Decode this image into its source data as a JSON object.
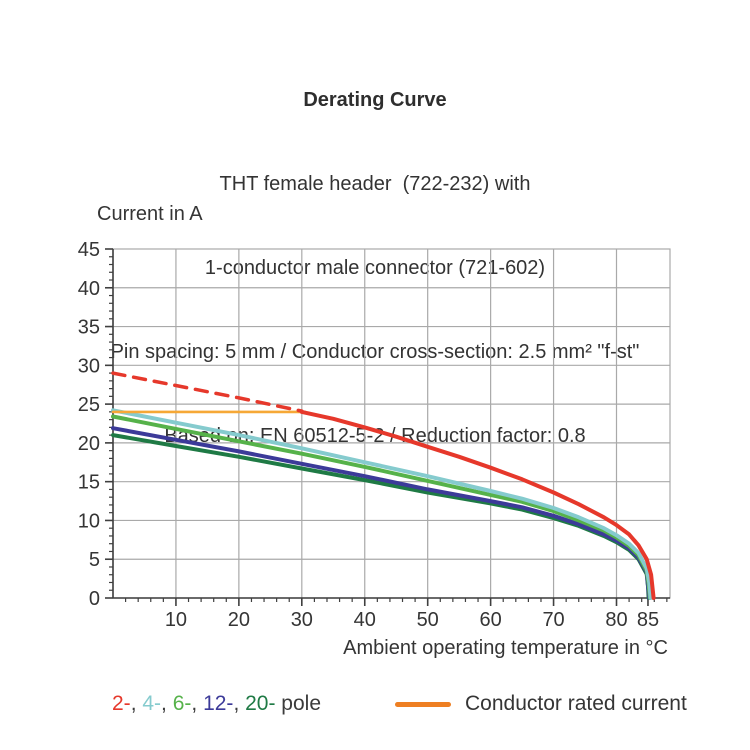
{
  "title_block": {
    "line1": "Derating Curve",
    "line2": "THT female header  (722-232) with",
    "line3": "1-conductor male connector (721-602)",
    "line4": "Pin spacing: 5 mm / Conductor cross-section: 2.5 mm² \"f-st\"",
    "line5": "Based on: EN 60512-5-2 / Reduction factor: 0.8"
  },
  "chart_data": {
    "type": "line",
    "title": "Derating Curve",
    "ylabel": "Current in A",
    "xlabel": "Ambient operating temperature in °C",
    "xlim": [
      0,
      88.5
    ],
    "ylim": [
      0,
      45
    ],
    "x_major_ticks": [
      10,
      20,
      30,
      40,
      50,
      60,
      70,
      80,
      85
    ],
    "x_grid_ticks": [
      10,
      20,
      30,
      40,
      50,
      60,
      70,
      80
    ],
    "x_minor_step": 2,
    "y_major_ticks": [
      0,
      5,
      10,
      15,
      20,
      25,
      30,
      35,
      40,
      45
    ],
    "y_grid_ticks": [
      5,
      10,
      15,
      20,
      25,
      30,
      35,
      40
    ],
    "y_minor_step": 1,
    "grid": true,
    "grid_color": "#a9a9a9",
    "axis_color": "#3f3f3f",
    "series": [
      {
        "name": "20-pole",
        "color": "#1f7a45",
        "style": "solid",
        "width": 4,
        "points": [
          [
            0,
            21.0
          ],
          [
            10,
            19.6
          ],
          [
            20,
            18.2
          ],
          [
            30,
            16.7
          ],
          [
            40,
            15.2
          ],
          [
            50,
            13.6
          ],
          [
            60,
            12.2
          ],
          [
            65,
            11.4
          ],
          [
            70,
            10.3
          ],
          [
            74,
            9.3
          ],
          [
            78,
            8.0
          ],
          [
            80,
            7.2
          ],
          [
            82,
            6.2
          ],
          [
            83.5,
            5.0
          ],
          [
            84.8,
            3.1
          ],
          [
            85,
            1.5
          ],
          [
            85.1,
            0
          ]
        ]
      },
      {
        "name": "12-pole",
        "color": "#3c3a99",
        "style": "solid",
        "width": 4,
        "points": [
          [
            0,
            21.9
          ],
          [
            10,
            20.4
          ],
          [
            20,
            18.9
          ],
          [
            30,
            17.3
          ],
          [
            40,
            15.7
          ],
          [
            50,
            14.0
          ],
          [
            60,
            12.5
          ],
          [
            65,
            11.7
          ],
          [
            70,
            10.6
          ],
          [
            74,
            9.5
          ],
          [
            78,
            8.2
          ],
          [
            80,
            7.4
          ],
          [
            82,
            6.4
          ],
          [
            83.5,
            5.2
          ],
          [
            84.8,
            3.3
          ],
          [
            85,
            1.6
          ],
          [
            85.2,
            0
          ]
        ]
      },
      {
        "name": "6-pole",
        "color": "#56b24a",
        "style": "solid",
        "width": 4,
        "points": [
          [
            0,
            23.4
          ],
          [
            10,
            21.8
          ],
          [
            20,
            20.2
          ],
          [
            30,
            18.6
          ],
          [
            40,
            16.9
          ],
          [
            50,
            15.1
          ],
          [
            60,
            13.3
          ],
          [
            65,
            12.4
          ],
          [
            70,
            11.2
          ],
          [
            74,
            10.0
          ],
          [
            78,
            8.7
          ],
          [
            80,
            7.8
          ],
          [
            82,
            6.7
          ],
          [
            83.5,
            5.5
          ],
          [
            84.8,
            3.5
          ],
          [
            85.1,
            1.8
          ],
          [
            85.3,
            0
          ]
        ]
      },
      {
        "name": "4-pole",
        "color": "#85cbce",
        "style": "solid",
        "width": 4,
        "points": [
          [
            0,
            24.2
          ],
          [
            10,
            22.6
          ],
          [
            20,
            21.0
          ],
          [
            30,
            19.3
          ],
          [
            40,
            17.5
          ],
          [
            50,
            15.7
          ],
          [
            60,
            13.8
          ],
          [
            65,
            12.8
          ],
          [
            70,
            11.6
          ],
          [
            74,
            10.4
          ],
          [
            78,
            9.0
          ],
          [
            80,
            8.1
          ],
          [
            82,
            7.0
          ],
          [
            83.5,
            5.8
          ],
          [
            84.8,
            3.8
          ],
          [
            85.2,
            2.0
          ],
          [
            85.4,
            0
          ]
        ]
      },
      {
        "name": "Conductor rated current",
        "color": "#f6a836",
        "style": "solid",
        "width": 2.6,
        "points": [
          [
            0,
            24
          ],
          [
            30.5,
            24
          ]
        ]
      },
      {
        "name": "2-pole (above rated current)",
        "color": "#e6382b",
        "style": "dashed",
        "width": 3.5,
        "points": [
          [
            0,
            29
          ],
          [
            10,
            27.4
          ],
          [
            20,
            25.8
          ],
          [
            30,
            24.1
          ]
        ]
      },
      {
        "name": "2-pole",
        "color": "#e6382b",
        "style": "solid",
        "width": 4,
        "points": [
          [
            30,
            24
          ],
          [
            35,
            23.1
          ],
          [
            40,
            22.0
          ],
          [
            45,
            20.8
          ],
          [
            50,
            19.5
          ],
          [
            55,
            18.2
          ],
          [
            60,
            16.8
          ],
          [
            65,
            15.3
          ],
          [
            70,
            13.6
          ],
          [
            74,
            12.1
          ],
          [
            78,
            10.4
          ],
          [
            80,
            9.4
          ],
          [
            82,
            8.2
          ],
          [
            83.5,
            6.8
          ],
          [
            84.8,
            5.0
          ],
          [
            85.5,
            3.0
          ],
          [
            85.9,
            0
          ]
        ]
      }
    ]
  },
  "legend": {
    "pole_tokens": [
      {
        "text": "2-",
        "color": "#e6382b"
      },
      {
        "text": ", ",
        "color": "#3b3b3b"
      },
      {
        "text": "4-",
        "color": "#85cbce"
      },
      {
        "text": ", ",
        "color": "#3b3b3b"
      },
      {
        "text": "6-",
        "color": "#56b24a"
      },
      {
        "text": ", ",
        "color": "#3b3b3b"
      },
      {
        "text": "12-",
        "color": "#3c3a99"
      },
      {
        "text": ", ",
        "color": "#3b3b3b"
      },
      {
        "text": "20-",
        "color": "#1f7a45"
      },
      {
        "text": " pole",
        "color": "#3b3b3b"
      }
    ],
    "rated_label": "Conductor rated current",
    "rated_color": "#ee7f22"
  }
}
